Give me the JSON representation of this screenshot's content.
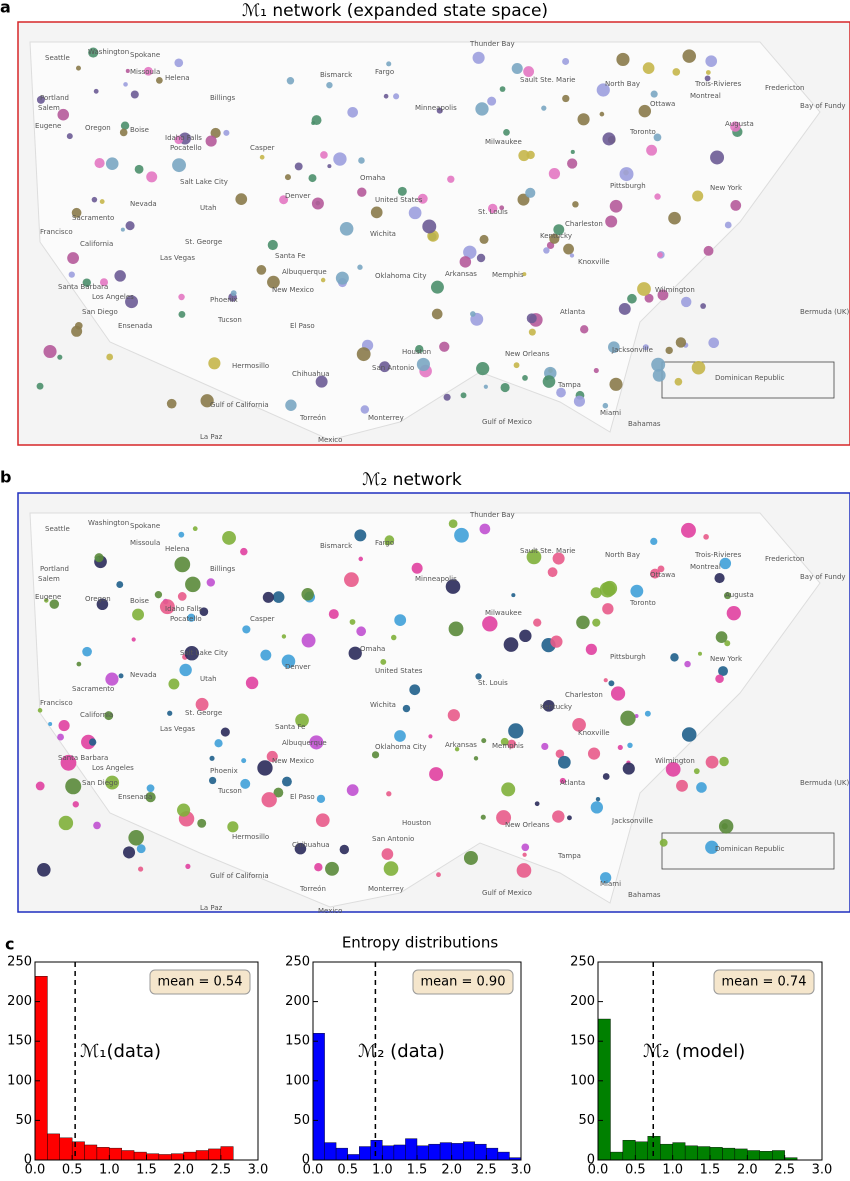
{
  "panels": {
    "a": "a",
    "b": "b",
    "c": "c"
  },
  "maps": [
    {
      "title": "ℳ₁ network (expanded state space)"
    },
    {
      "title": "ℳ₂ network"
    }
  ],
  "map_labels": [
    "Washington",
    "Spokane",
    "Missoula",
    "Helena",
    "Billings",
    "Seattle",
    "Portland",
    "Salem",
    "Eugene",
    "Oregon",
    "Boise",
    "Idaho Falls",
    "Pocatello",
    "Casper",
    "Bismarck",
    "Fargo",
    "Minneapolis",
    "Thunder Bay",
    "Sault Ste. Marie",
    "North Bay",
    "Ottawa",
    "Montreal",
    "Trois-Rivieres",
    "Fredericton",
    "Bay of Fundy",
    "Augusta",
    "Toronto",
    "Milwaukee",
    "Omaha",
    "Salt Lake City",
    "Nevada",
    "Utah",
    "Denver",
    "Sacramento",
    "Francisco",
    "California",
    "Las Vegas",
    "St. George",
    "United States",
    "Wichita",
    "St. Louis",
    "Kentucky",
    "Charleston",
    "Pittsburgh",
    "New York",
    "Santa Fe",
    "Albuquerque",
    "New Mexico",
    "Oklahoma City",
    "Arkansas",
    "Memphis",
    "Knoxville",
    "Atlanta",
    "Wilmington",
    "Bermuda (UK)",
    "Santa Barbara",
    "Los Angeles",
    "Phoenix",
    "San Diego",
    "Ensenada",
    "Tucson",
    "El Paso",
    "Houston",
    "San Antonio",
    "New Orleans",
    "Jacksonville",
    "Hermosillo",
    "Chihuahua",
    "Dominican Republic",
    "Gulf of California",
    "Gulf of Mexico",
    "Mexico",
    "Monterrey",
    "Miami",
    "Bahamas",
    "Tampa",
    "Torreón",
    "La Paz"
  ],
  "section_title": "Entropy distributions",
  "chart_data": [
    {
      "type": "histogram",
      "title": "ℳ₁(data)",
      "color": "#ff0000",
      "bins": [
        0,
        0.167,
        0.333,
        0.5,
        0.667,
        0.833,
        1,
        1.167,
        1.333,
        1.5,
        1.667,
        1.833,
        2,
        2.167,
        2.333,
        2.5,
        2.667,
        2.833,
        3
      ],
      "values": [
        232,
        33,
        28,
        23,
        19,
        16,
        15,
        12,
        10,
        8,
        7,
        8,
        10,
        12,
        14,
        17,
        0,
        0
      ],
      "mean": {
        "value": 0.54,
        "label": "mean = 0.54"
      },
      "xlim": [
        0,
        3
      ],
      "ylim": [
        0,
        250
      ],
      "yticks": [
        0,
        50,
        100,
        150,
        200,
        250
      ],
      "xticks": [
        {
          "value": 0,
          "label": "0.0"
        },
        {
          "value": 0.5,
          "label": "0.5"
        },
        {
          "value": 1,
          "label": "1.0"
        },
        {
          "value": 1.5,
          "label": "1.5"
        },
        {
          "value": 2,
          "label": "2.0"
        },
        {
          "value": 2.5,
          "label": "2.5"
        },
        {
          "value": 3,
          "label": "3.0"
        }
      ]
    },
    {
      "type": "histogram",
      "title": "ℳ₂ (data)",
      "color": "#0000ff",
      "bins": [
        0,
        0.167,
        0.333,
        0.5,
        0.667,
        0.833,
        1,
        1.167,
        1.333,
        1.5,
        1.667,
        1.833,
        2,
        2.167,
        2.333,
        2.5,
        2.667,
        2.833,
        3
      ],
      "values": [
        160,
        22,
        15,
        7,
        17,
        25,
        18,
        19,
        27,
        18,
        20,
        22,
        21,
        23,
        20,
        15,
        10,
        3
      ],
      "mean": {
        "value": 0.9,
        "label": "mean = 0.90"
      },
      "xlim": [
        0,
        3
      ],
      "ylim": [
        0,
        250
      ],
      "yticks": [
        0,
        50,
        100,
        150,
        200,
        250
      ],
      "xticks": [
        {
          "value": 0,
          "label": "0.0"
        },
        {
          "value": 0.5,
          "label": "0.5"
        },
        {
          "value": 1,
          "label": "1.0"
        },
        {
          "value": 1.5,
          "label": "1.5"
        },
        {
          "value": 2,
          "label": "2.0"
        },
        {
          "value": 2.5,
          "label": "2.5"
        },
        {
          "value": 3,
          "label": "3.0"
        }
      ]
    },
    {
      "type": "histogram",
      "title": "ℳ₂ (model)",
      "color": "#008000",
      "bins": [
        0,
        0.167,
        0.333,
        0.5,
        0.667,
        0.833,
        1,
        1.167,
        1.333,
        1.5,
        1.667,
        1.833,
        2,
        2.167,
        2.333,
        2.5,
        2.667,
        2.833,
        3
      ],
      "values": [
        178,
        10,
        25,
        23,
        30,
        20,
        22,
        18,
        17,
        16,
        15,
        14,
        12,
        11,
        12,
        3,
        0,
        0
      ],
      "mean": {
        "value": 0.74,
        "label": "mean = 0.74"
      },
      "xlim": [
        0,
        3
      ],
      "ylim": [
        0,
        250
      ],
      "yticks": [
        0,
        50,
        100,
        150,
        200,
        250
      ],
      "xticks": [
        {
          "value": 0,
          "label": "0.0"
        },
        {
          "value": 0.5,
          "label": "0.5"
        },
        {
          "value": 1,
          "label": "1.0"
        },
        {
          "value": 1.5,
          "label": "1.5"
        },
        {
          "value": 2,
          "label": "2.0"
        },
        {
          "value": 2.5,
          "label": "2.5"
        },
        {
          "value": 3,
          "label": "3.0"
        }
      ]
    }
  ]
}
